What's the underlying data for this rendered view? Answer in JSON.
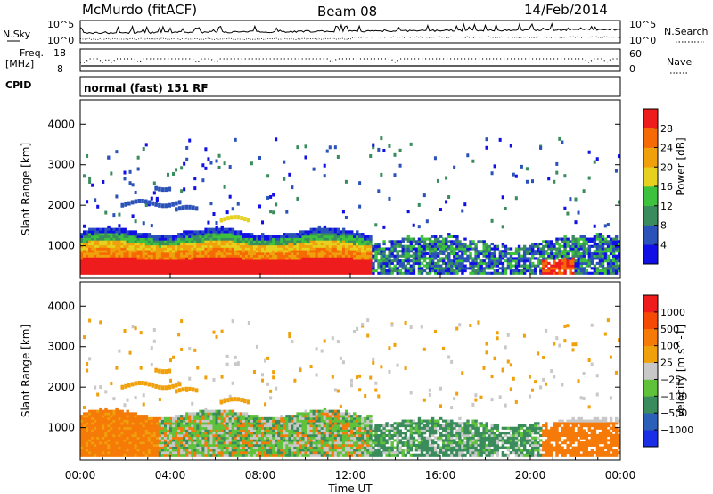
{
  "header": {
    "station": "McMurdo (fitACF)",
    "beam": "Beam 08",
    "date": "14/Feb/2014"
  },
  "noise_panel": {
    "left_label": "N.Sky",
    "right_label": "N.Search",
    "left_ticks": [
      "10^5",
      "10^0"
    ],
    "right_ticks": [
      "10^5",
      "10^0"
    ]
  },
  "freq_panel": {
    "left_label_line1": "Freq.",
    "left_label_line2": "[MHz]",
    "right_label": "Nave",
    "left_ticks": [
      "18",
      "8"
    ],
    "right_ticks": [
      "60",
      "0"
    ]
  },
  "cpid": {
    "label": "CPID",
    "text": "normal (fast) 151 RF"
  },
  "chart_data": [
    {
      "type": "heatmap",
      "name": "power",
      "ylabel": "Slant Range [km]",
      "y_ticks": [
        "1000",
        "2000",
        "3000",
        "4000"
      ],
      "ylim": [
        200,
        4600
      ],
      "colorbar_label": "Power [dB]",
      "colorbar_ticks": [
        "4",
        "8",
        "12",
        "16",
        "20",
        "24",
        "28"
      ],
      "colors": [
        "#1010e6",
        "#2b52b8",
        "#3a8c5c",
        "#3cc23c",
        "#e6d21e",
        "#f0a00a",
        "#f56a05",
        "#ee1c1c"
      ],
      "approx_regions": [
        {
          "t_start_h": 0.0,
          "t_end_h": 13.0,
          "range_low_km": 300,
          "range_high_km": 1400,
          "level": "high"
        },
        {
          "t_start_h": 13.0,
          "t_end_h": 24.0,
          "range_low_km": 300,
          "range_high_km": 1200,
          "level": "low"
        }
      ]
    },
    {
      "type": "heatmap",
      "name": "velocity",
      "ylabel": "Slant Range [km]",
      "y_ticks": [
        "1000",
        "2000",
        "3000",
        "4000"
      ],
      "ylim": [
        200,
        4600
      ],
      "colorbar_label": "Velocity [m s^-1]",
      "colorbar_ticks": [
        "1000",
        "500",
        "100",
        "25",
        "−25",
        "−100",
        "−500",
        "−1000"
      ],
      "colors": [
        "#1a2ee6",
        "#2b5fb8",
        "#3a8c5c",
        "#5fc23a",
        "#c8c8c8",
        "#f0a00a",
        "#f57a08",
        "#f54a06",
        "#ee1c1c"
      ]
    }
  ],
  "x_axis": {
    "label": "Time UT",
    "ticks": [
      "00:00",
      "04:00",
      "08:00",
      "12:00",
      "16:00",
      "20:00",
      "00:00"
    ]
  }
}
